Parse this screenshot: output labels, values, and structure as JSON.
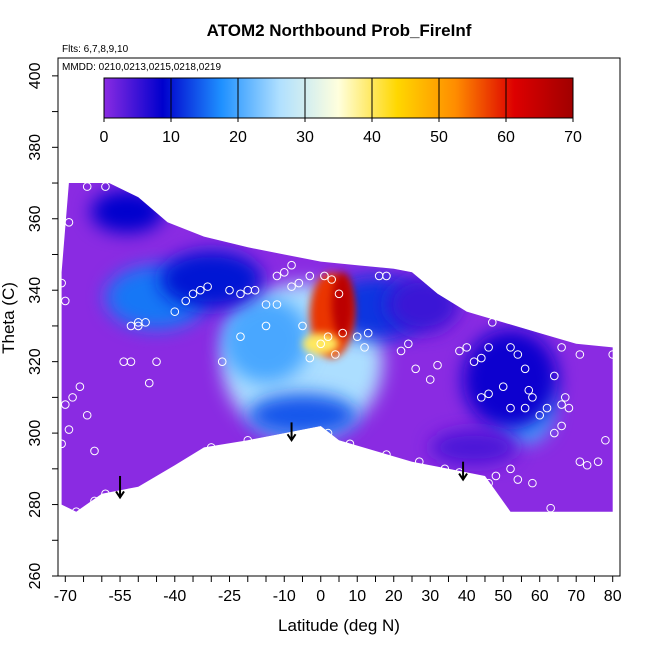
{
  "chart_data": {
    "type": "heatmap",
    "title": "ATOM2 Northbound Prob_FireInf",
    "notes": [
      "Flts: 6,7,8,9,10",
      "MMDD: 0210,0213,0215,0218,0219"
    ],
    "xlabel": "Latitude (deg N)",
    "ylabel": "Theta (C)",
    "xlim": [
      -72,
      82
    ],
    "ylim": [
      260,
      405
    ],
    "x_ticks": [
      -70,
      -55,
      -40,
      -25,
      -10,
      0,
      10,
      20,
      30,
      40,
      50,
      60,
      70,
      80
    ],
    "x_tick_labels": [
      "-70",
      "-55",
      "-40",
      "-25",
      "-10",
      "0",
      "10",
      "20",
      "30",
      "40",
      "50",
      "60",
      "70",
      "80"
    ],
    "y_ticks": [
      260,
      280,
      300,
      320,
      340,
      360,
      380,
      400
    ],
    "y_tick_labels": [
      "260",
      "280",
      "300",
      "320",
      "340",
      "360",
      "380",
      "400"
    ],
    "colorbar": {
      "ticks": [
        0,
        10,
        20,
        30,
        40,
        50,
        60,
        70
      ],
      "tick_labels": [
        "0",
        "10",
        "20",
        "30",
        "40",
        "50",
        "60",
        "70"
      ],
      "range": [
        0,
        70
      ],
      "colors": [
        "#8a2be2",
        "#0000cd",
        "#1e90ff",
        "#b0e0ff",
        "#ffffdd",
        "#ffd700",
        "#ff8c00",
        "#dd0000",
        "#a00000"
      ]
    },
    "background_color": "#8a2be2",
    "grid": false,
    "domain_outline": [
      [
        -71,
        345
      ],
      [
        -69,
        370
      ],
      [
        -64,
        370
      ],
      [
        -58,
        370
      ],
      [
        -50,
        366
      ],
      [
        -42,
        359
      ],
      [
        -32,
        355
      ],
      [
        -20,
        352
      ],
      [
        -10,
        350
      ],
      [
        0,
        348
      ],
      [
        10,
        347
      ],
      [
        20,
        346
      ],
      [
        25,
        345
      ],
      [
        32,
        339
      ],
      [
        40,
        334
      ],
      [
        50,
        331
      ],
      [
        60,
        328
      ],
      [
        70,
        325
      ],
      [
        80,
        324
      ],
      [
        80,
        278
      ],
      [
        68,
        278
      ],
      [
        52,
        278
      ],
      [
        45,
        288
      ],
      [
        35,
        290
      ],
      [
        25,
        292
      ],
      [
        15,
        295
      ],
      [
        5,
        298
      ],
      [
        0,
        302
      ],
      [
        -10,
        300
      ],
      [
        -20,
        298
      ],
      [
        -32,
        296
      ],
      [
        -40,
        291
      ],
      [
        -50,
        285
      ],
      [
        -60,
        283
      ],
      [
        -67,
        278
      ],
      [
        -71,
        280
      ]
    ],
    "features": [
      {
        "kind": "low",
        "x": -5,
        "y": 320,
        "rx": 22,
        "ry": 22,
        "value": 26
      },
      {
        "kind": "low",
        "x": -15,
        "y": 326,
        "rx": 12,
        "ry": 12,
        "value": 20
      },
      {
        "kind": "low",
        "x": -45,
        "y": 338,
        "rx": 14,
        "ry": 9,
        "value": 16
      },
      {
        "kind": "low",
        "x": -30,
        "y": 343,
        "rx": 14,
        "ry": 8,
        "value": 10
      },
      {
        "kind": "low",
        "x": 15,
        "y": 335,
        "rx": 14,
        "ry": 9,
        "value": 12
      },
      {
        "kind": "low",
        "x": 28,
        "y": 336,
        "rx": 10,
        "ry": 8,
        "value": 5
      },
      {
        "kind": "low",
        "x": -5,
        "y": 305,
        "rx": 15,
        "ry": 6,
        "value": 14
      },
      {
        "kind": "low",
        "x": 56,
        "y": 307,
        "rx": 8,
        "ry": 10,
        "value": 20
      },
      {
        "kind": "low",
        "x": 52,
        "y": 315,
        "rx": 13,
        "ry": 14,
        "value": 8
      },
      {
        "kind": "low",
        "x": -53,
        "y": 362,
        "rx": 10,
        "ry": 6,
        "value": 9
      },
      {
        "kind": "low",
        "x": 42,
        "y": 296,
        "rx": 12,
        "ry": 5,
        "value": 4
      },
      {
        "kind": "plume",
        "x": 3,
        "y": 333,
        "rx": 6,
        "ry": 12,
        "value": 58
      },
      {
        "kind": "plume",
        "x": 6,
        "y": 336,
        "rx": 3,
        "ry": 9,
        "value": 66
      },
      {
        "kind": "plume",
        "x": 0,
        "y": 325,
        "rx": 5,
        "ry": 3,
        "value": 40
      }
    ],
    "observations": [
      [
        -71,
        342
      ],
      [
        -70,
        337
      ],
      [
        -71,
        297
      ],
      [
        -70,
        308
      ],
      [
        -69,
        301
      ],
      [
        -68,
        310
      ],
      [
        -66,
        313
      ],
      [
        -64,
        305
      ],
      [
        -62,
        295
      ],
      [
        -59,
        283
      ],
      [
        -62,
        281
      ],
      [
        -67,
        278
      ],
      [
        -64,
        369
      ],
      [
        -59,
        369
      ],
      [
        -69,
        359
      ],
      [
        -52,
        330
      ],
      [
        -50,
        331
      ],
      [
        -48,
        331
      ],
      [
        -52,
        320
      ],
      [
        -47,
        314
      ],
      [
        -45,
        320
      ],
      [
        -40,
        334
      ],
      [
        -37,
        337
      ],
      [
        -35,
        339
      ],
      [
        -33,
        340
      ],
      [
        -31,
        341
      ],
      [
        -25,
        340
      ],
      [
        -22,
        339
      ],
      [
        -20,
        340
      ],
      [
        -18,
        340
      ],
      [
        -12,
        344
      ],
      [
        -10,
        345
      ],
      [
        -8,
        347
      ],
      [
        -15,
        330
      ],
      [
        -12,
        336
      ],
      [
        -6,
        342
      ],
      [
        -3,
        344
      ],
      [
        1,
        344
      ],
      [
        3,
        343
      ],
      [
        5,
        339
      ],
      [
        -5,
        330
      ],
      [
        -3,
        321
      ],
      [
        0,
        325
      ],
      [
        2,
        327
      ],
      [
        4,
        322
      ],
      [
        6,
        328
      ],
      [
        10,
        327
      ],
      [
        13,
        328
      ],
      [
        16,
        344
      ],
      [
        18,
        344
      ],
      [
        12,
        324
      ],
      [
        -27,
        320
      ],
      [
        -22,
        327
      ],
      [
        -15,
        336
      ],
      [
        -8,
        341
      ],
      [
        -30,
        296
      ],
      [
        -20,
        298
      ],
      [
        -8,
        298
      ],
      [
        -3,
        300
      ],
      [
        2,
        300
      ],
      [
        8,
        297
      ],
      [
        18,
        294
      ],
      [
        27,
        292
      ],
      [
        34,
        290
      ],
      [
        38,
        289
      ],
      [
        46,
        286
      ],
      [
        48,
        288
      ],
      [
        52,
        290
      ],
      [
        54,
        287
      ],
      [
        58,
        286
      ],
      [
        63,
        279
      ],
      [
        22,
        323
      ],
      [
        24,
        325
      ],
      [
        26,
        318
      ],
      [
        30,
        315
      ],
      [
        32,
        319
      ],
      [
        38,
        323
      ],
      [
        40,
        324
      ],
      [
        42,
        320
      ],
      [
        44,
        321
      ],
      [
        46,
        324
      ],
      [
        52,
        324
      ],
      [
        54,
        322
      ],
      [
        56,
        318
      ],
      [
        57,
        312
      ],
      [
        60,
        305
      ],
      [
        62,
        307
      ],
      [
        64,
        300
      ],
      [
        66,
        308
      ],
      [
        67,
        310
      ],
      [
        66,
        302
      ],
      [
        68,
        307
      ],
      [
        64,
        316
      ],
      [
        66,
        324
      ],
      [
        71,
        292
      ],
      [
        73,
        291
      ],
      [
        76,
        292
      ],
      [
        78,
        298
      ],
      [
        80,
        322
      ],
      [
        71,
        322
      ],
      [
        44,
        310
      ],
      [
        46,
        311
      ],
      [
        50,
        313
      ],
      [
        52,
        307
      ],
      [
        56,
        307
      ],
      [
        58,
        310
      ],
      [
        36,
        345
      ],
      [
        46,
        340
      ],
      [
        47,
        331
      ],
      [
        -54,
        320
      ],
      [
        -50,
        330
      ],
      [
        -44,
        285
      ]
    ],
    "arrows": [
      {
        "x": -55,
        "from": 288,
        "to": 282
      },
      {
        "x": -8,
        "from": 303,
        "to": 298
      },
      {
        "x": 39,
        "from": 292,
        "to": 287
      }
    ]
  }
}
